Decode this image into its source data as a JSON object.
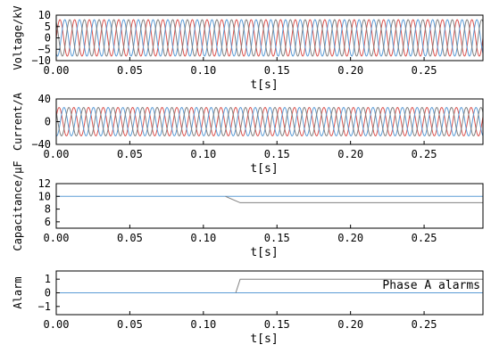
{
  "chart_data": [
    {
      "type": "line",
      "ylabel": "Voltage/kV",
      "xlabel": "t[s]",
      "xlim": [
        0,
        0.29
      ],
      "ylim": [
        -10,
        10
      ],
      "yticks": [
        "10",
        "5",
        "0",
        "−5",
        "−10"
      ],
      "xticks": [
        "0.00",
        "0.05",
        "0.10",
        "0.15",
        "0.20",
        "0.25"
      ],
      "series": [
        {
          "kind": "sine",
          "amplitude": 8,
          "frequency_hz": 100,
          "phase_deg": 0,
          "color": "#d9534f",
          "x": [
            0,
            0.29
          ]
        },
        {
          "kind": "sine",
          "amplitude": 8,
          "frequency_hz": 100,
          "phase_deg": -120,
          "color": "#5b9bd5",
          "x": [
            0,
            0.29
          ]
        },
        {
          "kind": "sine",
          "amplitude": 8,
          "frequency_hz": 100,
          "phase_deg": 120,
          "color": "#808080",
          "x": [
            0,
            0.29
          ]
        }
      ]
    },
    {
      "type": "line",
      "ylabel": "Current/A",
      "xlabel": "t[s]",
      "xlim": [
        0,
        0.29
      ],
      "ylim": [
        -40,
        40
      ],
      "yticks": [
        "40",
        "0",
        "−40"
      ],
      "xticks": [
        "0.00",
        "0.05",
        "0.10",
        "0.15",
        "0.20",
        "0.25"
      ],
      "series": [
        {
          "kind": "sine",
          "amplitude": 25,
          "frequency_hz": 100,
          "phase_deg": 20,
          "color": "#d9534f",
          "x": [
            0,
            0.29
          ]
        },
        {
          "kind": "sine",
          "amplitude": 25,
          "frequency_hz": 100,
          "phase_deg": -100,
          "color": "#5b9bd5",
          "x": [
            0,
            0.29
          ]
        },
        {
          "kind": "sine",
          "amplitude": 25,
          "frequency_hz": 100,
          "phase_deg": 140,
          "color": "#808080",
          "x": [
            0,
            0.29
          ]
        }
      ]
    },
    {
      "type": "line",
      "ylabel": "Capacitance/μF",
      "xlabel": "t[s]",
      "xlim": [
        0,
        0.29
      ],
      "ylim": [
        5,
        12
      ],
      "yticks": [
        "12",
        "10",
        "8",
        "6"
      ],
      "xticks": [
        "0.00",
        "0.05",
        "0.10",
        "0.15",
        "0.20",
        "0.25"
      ],
      "series": [
        {
          "kind": "points",
          "color": "#5b9bd5",
          "x": [
            0,
            0.29
          ],
          "y": [
            10,
            10
          ]
        },
        {
          "kind": "points",
          "color": "#808080",
          "x": [
            0.115,
            0.122,
            0.125,
            0.29
          ],
          "y": [
            10,
            9.3,
            9,
            9
          ]
        }
      ]
    },
    {
      "type": "line",
      "ylabel": "Alarm",
      "xlabel": "t[s]",
      "xlim": [
        0,
        0.29
      ],
      "ylim": [
        -1.6,
        1.6
      ],
      "yticks": [
        "1",
        "0",
        "−1"
      ],
      "xticks": [
        "0.00",
        "0.05",
        "0.10",
        "0.15",
        "0.20",
        "0.25"
      ],
      "annotation": "Phase A alarms",
      "series": [
        {
          "kind": "points",
          "color": "#5b9bd5",
          "x": [
            0,
            0.29
          ],
          "y": [
            0,
            0
          ]
        },
        {
          "kind": "points",
          "color": "#808080",
          "x": [
            0.122,
            0.125,
            0.29
          ],
          "y": [
            0,
            1,
            1
          ]
        }
      ]
    }
  ]
}
